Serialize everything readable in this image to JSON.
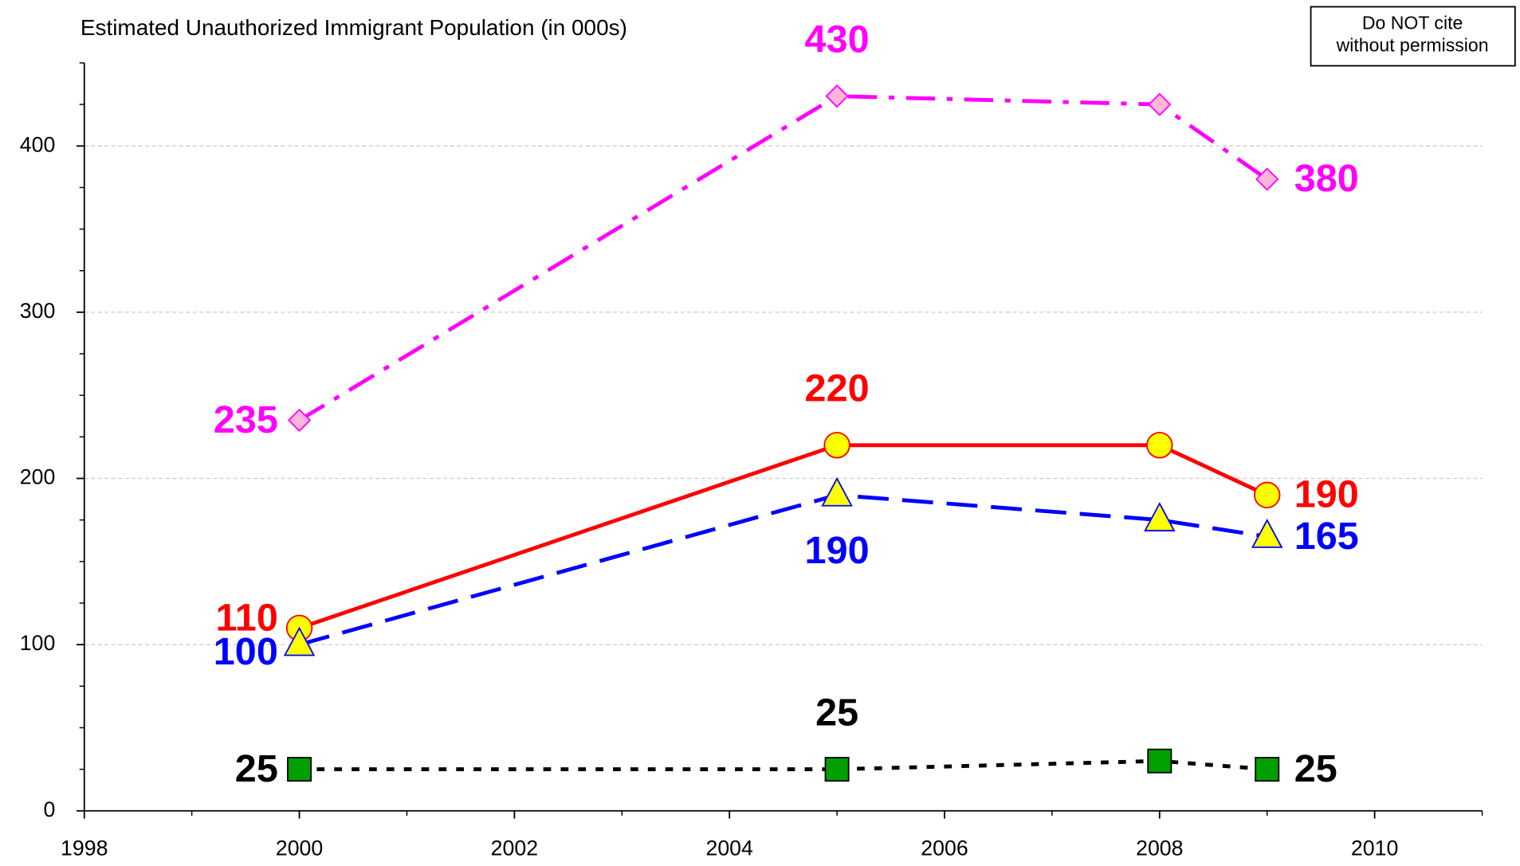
{
  "chart_data": {
    "type": "line",
    "title": "Estimated Unauthorized Immigrant Population (in 000s)",
    "note": [
      "Do NOT cite",
      "without permission"
    ],
    "x": [
      2000,
      2005,
      2008,
      2009
    ],
    "xlim": [
      1998,
      2011
    ],
    "xticks": [
      1998,
      2000,
      2002,
      2004,
      2006,
      2008,
      2010
    ],
    "xminor_ticks": [
      1999,
      2001,
      2003,
      2005,
      2007,
      2009,
      2011
    ],
    "ylim": [
      0,
      450
    ],
    "yticks": [
      0,
      100,
      200,
      300,
      400
    ],
    "yminor_ticks": [
      25,
      50,
      75,
      125,
      150,
      175,
      225,
      250,
      275,
      325,
      350,
      375,
      425,
      450
    ],
    "grid": true,
    "series": [
      {
        "color": "#ff00ff",
        "marker": "diamond",
        "marker_fill": "#ffb6d9",
        "line_style": "dashdot",
        "values": [
          235,
          430,
          425,
          380
        ],
        "value_labels": [
          "235",
          "430",
          null,
          "380"
        ]
      },
      {
        "color": "#ff0000",
        "marker": "circle",
        "marker_fill": "#ffff00",
        "line_style": "solid",
        "values": [
          110,
          220,
          220,
          190
        ],
        "value_labels": [
          "110",
          "220",
          null,
          "190"
        ]
      },
      {
        "color": "#0000ff",
        "marker": "triangle",
        "marker_fill": "#ffff00",
        "line_style": "dashed",
        "values": [
          100,
          190,
          175,
          165
        ],
        "value_labels": [
          "100",
          "190",
          null,
          "165"
        ]
      },
      {
        "color": "#000000",
        "marker": "square",
        "marker_fill": "#00a000",
        "line_style": "dotted",
        "values": [
          25,
          25,
          30,
          25
        ],
        "value_labels": [
          "25",
          "25",
          null,
          "25"
        ]
      }
    ]
  }
}
